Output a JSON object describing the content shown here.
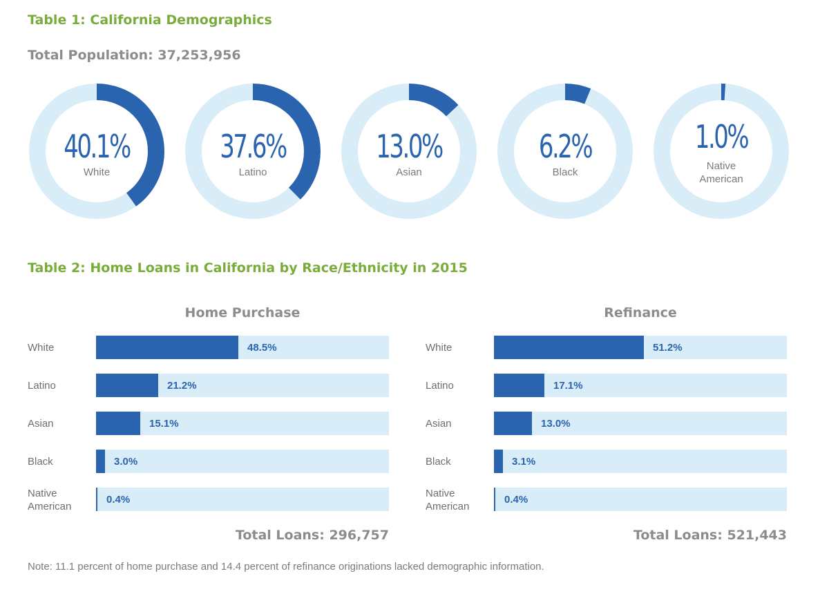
{
  "colors": {
    "title_green": "#79ac3b",
    "primary_blue": "#2b64ae",
    "track_light_blue": "#d8edf8",
    "gray_text": "#8c8c8c"
  },
  "table1": {
    "title": "Table 1: California Demographics",
    "population_text": "Total Population: 37,253,956"
  },
  "table2": {
    "title": "Table 2: Home Loans in California by Race/Ethnicity in 2015"
  },
  "note": "Note: 11.1 percent of home purchase and 14.4 percent of refinance originations lacked demographic information.",
  "chart_data": [
    {
      "type": "pie",
      "style": "donut",
      "title": "Table 1: California Demographics",
      "categories": [
        "White",
        "Latino",
        "Asian",
        "Black",
        "Native American"
      ],
      "values": [
        40.1,
        37.6,
        13.0,
        6.2,
        1.0
      ],
      "value_labels": [
        "40.1%",
        "37.6%",
        "13.0%",
        "6.2%",
        "1.0%"
      ],
      "unit": "%"
    },
    {
      "type": "bar",
      "orientation": "horizontal",
      "title": "Home Purchase",
      "categories": [
        "White",
        "Latino",
        "Asian",
        "Black",
        "Native American"
      ],
      "values": [
        48.5,
        21.2,
        15.1,
        3.0,
        0.4
      ],
      "value_labels": [
        "48.5%",
        "21.2%",
        "15.1%",
        "3.0%",
        "0.4%"
      ],
      "xlim": [
        0,
        100
      ],
      "total_text": "Total Loans: 296,757"
    },
    {
      "type": "bar",
      "orientation": "horizontal",
      "title": "Refinance",
      "categories": [
        "White",
        "Latino",
        "Asian",
        "Black",
        "Native American"
      ],
      "values": [
        51.2,
        17.1,
        13.0,
        3.1,
        0.4
      ],
      "value_labels": [
        "51.2%",
        "17.1%",
        "13.0%",
        "3.1%",
        "0.4%"
      ],
      "xlim": [
        0,
        100
      ],
      "total_text": "Total Loans:  521,443"
    }
  ]
}
